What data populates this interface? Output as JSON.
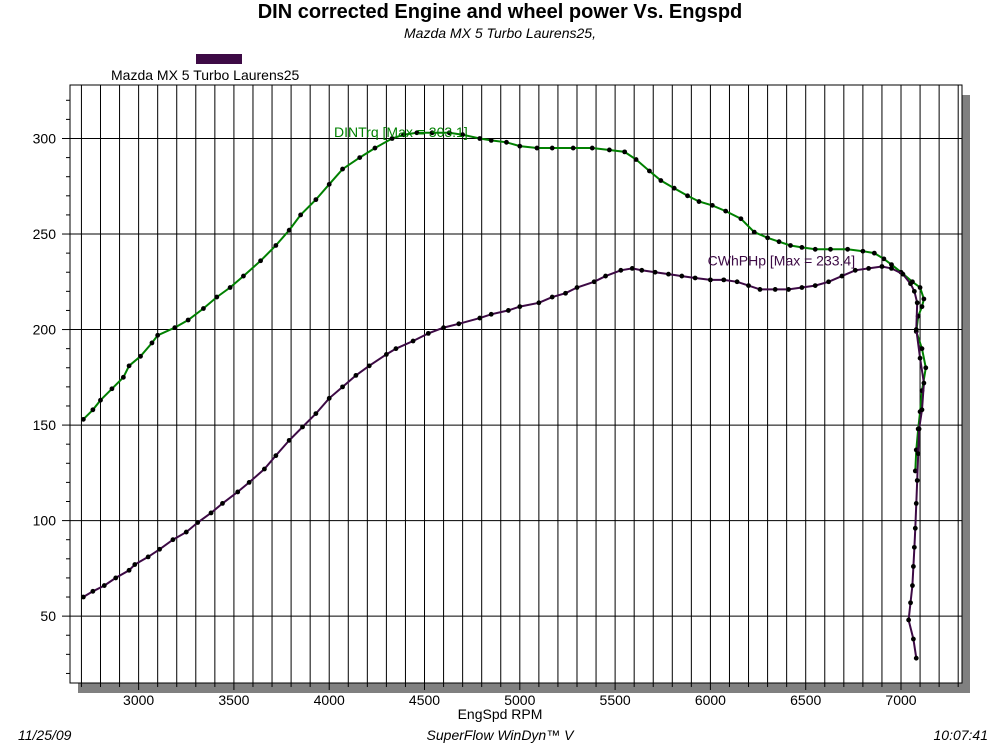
{
  "header": {
    "title": "DIN corrected Engine and wheel power Vs. Engspd",
    "subtitle": "Mazda MX 5 Turbo Laurens25,"
  },
  "legend": {
    "label": "Mazda MX 5 Turbo Laurens25",
    "color": "#3d0a45"
  },
  "footer": {
    "date": "11/25/09",
    "software": "SuperFlow WinDyn™ V",
    "time": "10:07:41"
  },
  "chart_data": {
    "type": "line",
    "xlabel": "EngSpd RPM",
    "ylabel": "",
    "xlim": [
      2640,
      7320
    ],
    "ylim": [
      15,
      328
    ],
    "x_ticks": [
      3000,
      3500,
      4000,
      4500,
      5000,
      5500,
      6000,
      6500,
      7000
    ],
    "y_ticks": [
      50,
      100,
      150,
      200,
      250,
      300
    ],
    "grid": true,
    "series": [
      {
        "name": "DINTrq",
        "color": "#008000",
        "annotation": "DINTrq [Max = 303.1]",
        "annotation_at": [
          4550,
          303
        ],
        "points": [
          [
            2710,
            153
          ],
          [
            2760,
            158
          ],
          [
            2800,
            163
          ],
          [
            2860,
            169
          ],
          [
            2920,
            175
          ],
          [
            2950,
            181
          ],
          [
            3010,
            186
          ],
          [
            3070,
            193
          ],
          [
            3100,
            197
          ],
          [
            3190,
            201
          ],
          [
            3260,
            205
          ],
          [
            3340,
            211
          ],
          [
            3410,
            217
          ],
          [
            3480,
            222
          ],
          [
            3550,
            228
          ],
          [
            3640,
            236
          ],
          [
            3720,
            244
          ],
          [
            3790,
            252
          ],
          [
            3850,
            260
          ],
          [
            3930,
            268
          ],
          [
            4000,
            276
          ],
          [
            4070,
            284
          ],
          [
            4160,
            290
          ],
          [
            4240,
            295
          ],
          [
            4330,
            300
          ],
          [
            4390,
            302
          ],
          [
            4460,
            303
          ],
          [
            4540,
            303
          ],
          [
            4630,
            303
          ],
          [
            4700,
            302
          ],
          [
            4790,
            300
          ],
          [
            4850,
            299
          ],
          [
            4930,
            298
          ],
          [
            5000,
            296
          ],
          [
            5090,
            295
          ],
          [
            5170,
            295
          ],
          [
            5280,
            295
          ],
          [
            5380,
            295
          ],
          [
            5470,
            294
          ],
          [
            5550,
            293
          ],
          [
            5610,
            289
          ],
          [
            5680,
            283
          ],
          [
            5740,
            278
          ],
          [
            5810,
            274
          ],
          [
            5880,
            270
          ],
          [
            5940,
            267
          ],
          [
            6010,
            265
          ],
          [
            6080,
            262
          ],
          [
            6160,
            258
          ],
          [
            6230,
            251
          ],
          [
            6300,
            248
          ],
          [
            6360,
            246
          ],
          [
            6420,
            244
          ],
          [
            6480,
            243
          ],
          [
            6550,
            242
          ],
          [
            6630,
            242
          ],
          [
            6720,
            242
          ],
          [
            6800,
            241
          ],
          [
            6860,
            240
          ],
          [
            6910,
            237
          ],
          [
            6950,
            234
          ],
          [
            7000,
            230
          ],
          [
            7060,
            225
          ],
          [
            7100,
            222
          ],
          [
            7120,
            216
          ],
          [
            7110,
            212
          ],
          [
            7090,
            207
          ],
          [
            7080,
            199
          ],
          [
            7110,
            190
          ],
          [
            7130,
            180
          ],
          [
            7110,
            168
          ],
          [
            7100,
            157
          ],
          [
            7090,
            148
          ],
          [
            7080,
            137
          ],
          [
            7075,
            126
          ]
        ]
      },
      {
        "name": "CWhPHp",
        "color": "#3d0a45",
        "annotation": "CWhPHp [Max = 233.4]",
        "annotation_at": [
          6930,
          233
        ],
        "points": [
          [
            2710,
            60
          ],
          [
            2760,
            63
          ],
          [
            2820,
            66
          ],
          [
            2880,
            70
          ],
          [
            2950,
            74
          ],
          [
            2980,
            77
          ],
          [
            3050,
            81
          ],
          [
            3110,
            85
          ],
          [
            3180,
            90
          ],
          [
            3250,
            94
          ],
          [
            3310,
            99
          ],
          [
            3380,
            104
          ],
          [
            3440,
            109
          ],
          [
            3520,
            115
          ],
          [
            3580,
            120
          ],
          [
            3660,
            127
          ],
          [
            3720,
            134
          ],
          [
            3790,
            142
          ],
          [
            3860,
            149
          ],
          [
            3930,
            156
          ],
          [
            4000,
            164
          ],
          [
            4070,
            170
          ],
          [
            4140,
            176
          ],
          [
            4210,
            181
          ],
          [
            4300,
            187
          ],
          [
            4350,
            190
          ],
          [
            4440,
            194
          ],
          [
            4520,
            198
          ],
          [
            4600,
            201
          ],
          [
            4680,
            203
          ],
          [
            4790,
            206
          ],
          [
            4850,
            208
          ],
          [
            4940,
            210
          ],
          [
            5000,
            212
          ],
          [
            5100,
            214
          ],
          [
            5170,
            217
          ],
          [
            5240,
            219
          ],
          [
            5300,
            222
          ],
          [
            5390,
            225
          ],
          [
            5450,
            228
          ],
          [
            5530,
            231
          ],
          [
            5590,
            232
          ],
          [
            5640,
            231
          ],
          [
            5710,
            230
          ],
          [
            5780,
            229
          ],
          [
            5850,
            228
          ],
          [
            5920,
            227
          ],
          [
            6000,
            226
          ],
          [
            6070,
            226
          ],
          [
            6140,
            225
          ],
          [
            6200,
            223
          ],
          [
            6260,
            221
          ],
          [
            6340,
            221
          ],
          [
            6410,
            221
          ],
          [
            6480,
            222
          ],
          [
            6550,
            223
          ],
          [
            6620,
            225
          ],
          [
            6690,
            228
          ],
          [
            6760,
            231
          ],
          [
            6830,
            232
          ],
          [
            6900,
            233
          ],
          [
            6950,
            232
          ],
          [
            7010,
            229
          ],
          [
            7050,
            224
          ],
          [
            7070,
            220
          ],
          [
            7085,
            214
          ],
          [
            7080,
            200
          ],
          [
            7100,
            185
          ],
          [
            7120,
            172
          ],
          [
            7110,
            158
          ],
          [
            7095,
            148
          ],
          [
            7090,
            135
          ],
          [
            7085,
            121
          ],
          [
            7080,
            109
          ],
          [
            7075,
            96
          ],
          [
            7070,
            86
          ],
          [
            7065,
            76
          ],
          [
            7060,
            66
          ],
          [
            7050,
            57
          ],
          [
            7040,
            48
          ],
          [
            7065,
            38
          ],
          [
            7080,
            28
          ]
        ]
      }
    ]
  }
}
